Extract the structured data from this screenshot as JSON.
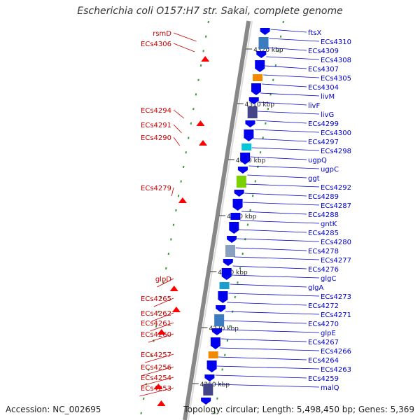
{
  "title": "Escherichia coli O157:H7 str. Sakai, complete genome",
  "accession": "Accession: NC_002695",
  "topology": "Topology: circular; Length: 5,498,450 bp; Genes: 5,369",
  "kbp_labels": [
    "4320 kbp",
    "4310 kbp",
    "4300 kbp",
    "4290 kbp",
    "4280 kbp",
    "4270 kbp",
    "4260 kbp"
  ],
  "left_labels": [
    "rsmD",
    "ECs4306",
    "ECs4294",
    "ECs4291",
    "ECs4290",
    "ECs4279",
    "glpD",
    "ECs4265",
    "ECs4262",
    "ECs4261",
    "ECs4260",
    "ECs4257",
    "ECs4256",
    "ECs4254",
    "ECs4253"
  ],
  "right_labels": [
    "ftsX",
    "ECs4310",
    "ECs4309",
    "ECs4308",
    "ECs4307",
    "ECs4305",
    "ECs4304",
    "livM",
    "livF",
    "livG",
    "ECs4299",
    "ECs4300",
    "ECs4297",
    "ECs4298",
    "ugpQ",
    "ugpC",
    "ggt",
    "ECs4292",
    "ECs4289",
    "ECs4287",
    "ECs4288",
    "gntK",
    "ECs4285",
    "ECs4280",
    "ECs4278",
    "ECs4277",
    "ECs4276",
    "glgC",
    "glgA",
    "ECs4273",
    "ECs4272",
    "ECs4271",
    "ECs4270",
    "glpE",
    "ECs4267",
    "ECs4266",
    "ECs4264",
    "ECs4263",
    "ECs4259",
    "malQ"
  ],
  "colors": {
    "left_label": "#cc0000",
    "right_label": "#0000cc",
    "backbone": "#888888",
    "forward_arrow": "#ff0000",
    "reverse_arrow": "#0000ee"
  }
}
